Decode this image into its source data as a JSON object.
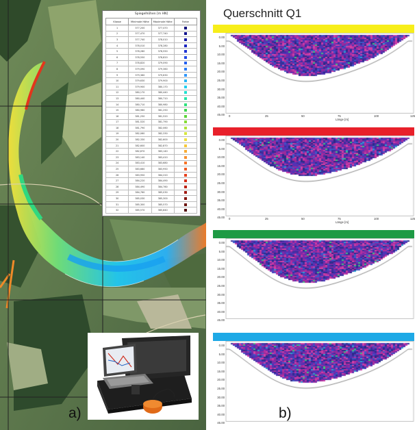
{
  "panel_a": {
    "label": "a)",
    "legend": {
      "title": "Spiegelhöhen [m HN]",
      "headers": [
        "Klasse",
        "Minimale Höhe",
        "Maximale Höhe",
        "Farbe"
      ],
      "rows": [
        {
          "k": "1",
          "min": "377,200",
          "max": "377,470",
          "color": "#0a0a7a"
        },
        {
          "k": "2",
          "min": "377,470",
          "max": "377,740",
          "color": "#10128c"
        },
        {
          "k": "3",
          "min": "377,740",
          "max": "378,010",
          "color": "#1418a6"
        },
        {
          "k": "4",
          "min": "378,010",
          "max": "378,280",
          "color": "#1a24c0"
        },
        {
          "k": "5",
          "min": "378,280",
          "max": "378,550",
          "color": "#2034d4"
        },
        {
          "k": "6",
          "min": "378,550",
          "max": "378,820",
          "color": "#2248e6"
        },
        {
          "k": "7",
          "min": "378,820",
          "max": "379,090",
          "color": "#2460f0"
        },
        {
          "k": "8",
          "min": "379,090",
          "max": "379,360",
          "color": "#2a7cf6"
        },
        {
          "k": "9",
          "min": "379,360",
          "max": "379,630",
          "color": "#3096fa"
        },
        {
          "k": "10",
          "min": "379,630",
          "max": "379,900",
          "color": "#2ab6f6"
        },
        {
          "k": "11",
          "min": "379,900",
          "max": "380,170",
          "color": "#20d0f0"
        },
        {
          "k": "12",
          "min": "380,170",
          "max": "380,440",
          "color": "#20e0d0"
        },
        {
          "k": "13",
          "min": "380,440",
          "max": "380,710",
          "color": "#24e6a8"
        },
        {
          "k": "14",
          "min": "380,710",
          "max": "380,980",
          "color": "#2ee07c"
        },
        {
          "k": "15",
          "min": "380,980",
          "max": "381,250",
          "color": "#3cd650"
        },
        {
          "k": "16",
          "min": "381,250",
          "max": "381,520",
          "color": "#5cd63a"
        },
        {
          "k": "17",
          "min": "381,520",
          "max": "381,790",
          "color": "#86dc36"
        },
        {
          "k": "18",
          "min": "381,790",
          "max": "382,060",
          "color": "#b0e23a"
        },
        {
          "k": "19",
          "min": "382,060",
          "max": "382,330",
          "color": "#d6e63e"
        },
        {
          "k": "20",
          "min": "382,330",
          "max": "382,600",
          "color": "#f0e040"
        },
        {
          "k": "21",
          "min": "382,600",
          "max": "382,870",
          "color": "#f6c83a"
        },
        {
          "k": "22",
          "min": "382,870",
          "max": "383,140",
          "color": "#f8ac34"
        },
        {
          "k": "23",
          "min": "383,140",
          "max": "383,410",
          "color": "#f8902e"
        },
        {
          "k": "24",
          "min": "383,410",
          "max": "383,680",
          "color": "#f67428"
        },
        {
          "k": "25",
          "min": "383,680",
          "max": "383,950",
          "color": "#f05a22"
        },
        {
          "k": "26",
          "min": "383,950",
          "max": "384,220",
          "color": "#e6401c"
        },
        {
          "k": "27",
          "min": "384,220",
          "max": "384,490",
          "color": "#d42e18"
        },
        {
          "k": "28",
          "min": "384,490",
          "max": "384,760",
          "color": "#bc2214"
        },
        {
          "k": "29",
          "min": "384,760",
          "max": "385,030",
          "color": "#a01a12"
        },
        {
          "k": "30",
          "min": "385,030",
          "max": "385,300",
          "color": "#84160e"
        },
        {
          "k": "31",
          "min": "385,300",
          "max": "385,570",
          "color": "#6a120c"
        },
        {
          "k": "32",
          "min": "385,570",
          "max": "385,840",
          "color": "#520e0a"
        }
      ]
    }
  },
  "panel_b": {
    "title": "Querschnitt Q1",
    "label": "b)",
    "y_ticks": [
      "0.00",
      "5.00",
      "10.00",
      "15.00",
      "20.00",
      "25.00",
      "30.00",
      "35.00",
      "40.00",
      "45.00"
    ],
    "x_ticks": [
      "0",
      "25",
      "50",
      "75",
      "100",
      "125"
    ],
    "x_title": "Länge [m]",
    "sections": [
      {
        "bar_color": "#f7ee1a",
        "show_x": true
      },
      {
        "bar_color": "#e8202a",
        "show_x": true
      },
      {
        "bar_color": "#1e9a44",
        "show_x": false
      },
      {
        "bar_color": "#1ea9e6",
        "show_x": false
      }
    ]
  }
}
